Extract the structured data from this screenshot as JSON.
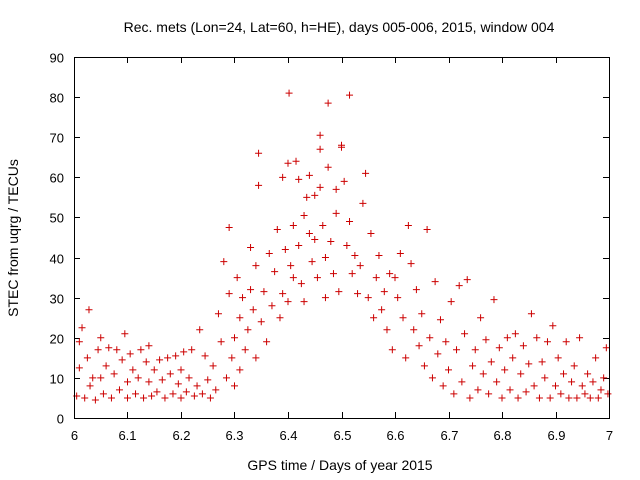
{
  "chart_data": {
    "type": "scatter",
    "title": "Rec. mets (Lon=24, Lat=60, h=HE), days 005-006, 2015, window 004",
    "xlabel": "GPS time / Days of year 2015",
    "ylabel": "STEC from uqrg / TECUs",
    "xlim": [
      6,
      7
    ],
    "ylim": [
      0,
      90
    ],
    "xticks": [
      6,
      6.1,
      6.2,
      6.3,
      6.4,
      6.5,
      6.6,
      6.7,
      6.8,
      6.9,
      7
    ],
    "xtick_labels": [
      "6",
      "6.1",
      "6.2",
      "6.3",
      "6.4",
      "6.5",
      "6.6",
      "6.7",
      "6.8",
      "6.9",
      "7"
    ],
    "yticks": [
      0,
      10,
      20,
      30,
      40,
      50,
      60,
      70,
      80,
      90
    ],
    "ytick_labels": [
      "0",
      "10",
      "20",
      "30",
      "40",
      "50",
      "60",
      "70",
      "80",
      "90"
    ],
    "marker": "+",
    "color": "#cc0000",
    "series": [
      {
        "name": "STEC",
        "points": [
          [
            6.005,
            5.5
          ],
          [
            6.01,
            19
          ],
          [
            6.01,
            12.5
          ],
          [
            6.015,
            22.5
          ],
          [
            6.02,
            5
          ],
          [
            6.025,
            15
          ],
          [
            6.028,
            27
          ],
          [
            6.03,
            8
          ],
          [
            6.035,
            10
          ],
          [
            6.04,
            4.5
          ],
          [
            6.045,
            17
          ],
          [
            6.05,
            20
          ],
          [
            6.05,
            10
          ],
          [
            6.055,
            6
          ],
          [
            6.06,
            13
          ],
          [
            6.065,
            17.5
          ],
          [
            6.07,
            5
          ],
          [
            6.075,
            11
          ],
          [
            6.08,
            17
          ],
          [
            6.085,
            7
          ],
          [
            6.09,
            14.5
          ],
          [
            6.095,
            21
          ],
          [
            6.1,
            5
          ],
          [
            6.1,
            9
          ],
          [
            6.105,
            16
          ],
          [
            6.11,
            12
          ],
          [
            6.115,
            6
          ],
          [
            6.12,
            10
          ],
          [
            6.125,
            17
          ],
          [
            6.13,
            5
          ],
          [
            6.135,
            14
          ],
          [
            6.14,
            9
          ],
          [
            6.14,
            18
          ],
          [
            6.145,
            5.5
          ],
          [
            6.15,
            12
          ],
          [
            6.155,
            6.5
          ],
          [
            6.16,
            14.5
          ],
          [
            6.165,
            9.5
          ],
          [
            6.17,
            5
          ],
          [
            6.175,
            15
          ],
          [
            6.18,
            11
          ],
          [
            6.185,
            6
          ],
          [
            6.19,
            15.5
          ],
          [
            6.195,
            8.5
          ],
          [
            6.2,
            5
          ],
          [
            6.2,
            12
          ],
          [
            6.205,
            16.5
          ],
          [
            6.21,
            6.5
          ],
          [
            6.215,
            10
          ],
          [
            6.22,
            17
          ],
          [
            6.225,
            5.5
          ],
          [
            6.23,
            8
          ],
          [
            6.235,
            22
          ],
          [
            6.24,
            6
          ],
          [
            6.245,
            15.5
          ],
          [
            6.25,
            9.5
          ],
          [
            6.255,
            5
          ],
          [
            6.26,
            13
          ],
          [
            6.265,
            7
          ],
          [
            6.27,
            26
          ],
          [
            6.275,
            19
          ],
          [
            6.28,
            39
          ],
          [
            6.285,
            10
          ],
          [
            6.29,
            47.5
          ],
          [
            6.29,
            31
          ],
          [
            6.295,
            15
          ],
          [
            6.3,
            8
          ],
          [
            6.3,
            20
          ],
          [
            6.305,
            35
          ],
          [
            6.31,
            12
          ],
          [
            6.31,
            25
          ],
          [
            6.315,
            30
          ],
          [
            6.32,
            17
          ],
          [
            6.325,
            22
          ],
          [
            6.33,
            32
          ],
          [
            6.33,
            42.5
          ],
          [
            6.335,
            27
          ],
          [
            6.34,
            15
          ],
          [
            6.34,
            38
          ],
          [
            6.345,
            58
          ],
          [
            6.345,
            66
          ],
          [
            6.35,
            24
          ],
          [
            6.355,
            31.5
          ],
          [
            6.36,
            19
          ],
          [
            6.365,
            41
          ],
          [
            6.37,
            28
          ],
          [
            6.375,
            36.5
          ],
          [
            6.38,
            47
          ],
          [
            6.385,
            25
          ],
          [
            6.39,
            60
          ],
          [
            6.39,
            31
          ],
          [
            6.395,
            42
          ],
          [
            6.4,
            29
          ],
          [
            6.4,
            63.5
          ],
          [
            6.402,
            81
          ],
          [
            6.405,
            38
          ],
          [
            6.41,
            48
          ],
          [
            6.41,
            35
          ],
          [
            6.415,
            64
          ],
          [
            6.42,
            59.5
          ],
          [
            6.42,
            43
          ],
          [
            6.425,
            33.5
          ],
          [
            6.43,
            50.5
          ],
          [
            6.43,
            29
          ],
          [
            6.435,
            55
          ],
          [
            6.44,
            60.5
          ],
          [
            6.44,
            46
          ],
          [
            6.445,
            39
          ],
          [
            6.45,
            55.5
          ],
          [
            6.45,
            44.5
          ],
          [
            6.455,
            35
          ],
          [
            6.46,
            67
          ],
          [
            6.46,
            70.5
          ],
          [
            6.46,
            57.5
          ],
          [
            6.465,
            48
          ],
          [
            6.47,
            40
          ],
          [
            6.47,
            30
          ],
          [
            6.475,
            78.5
          ],
          [
            6.475,
            62.5
          ],
          [
            6.48,
            44
          ],
          [
            6.485,
            36
          ],
          [
            6.49,
            57
          ],
          [
            6.49,
            51
          ],
          [
            6.495,
            31.5
          ],
          [
            6.5,
            68
          ],
          [
            6.5,
            67.5
          ],
          [
            6.505,
            59
          ],
          [
            6.51,
            43
          ],
          [
            6.515,
            80.5
          ],
          [
            6.515,
            49
          ],
          [
            6.52,
            36
          ],
          [
            6.525,
            40.5
          ],
          [
            6.53,
            31
          ],
          [
            6.535,
            38
          ],
          [
            6.54,
            53.5
          ],
          [
            6.545,
            61
          ],
          [
            6.55,
            30
          ],
          [
            6.555,
            46
          ],
          [
            6.56,
            25
          ],
          [
            6.565,
            35
          ],
          [
            6.57,
            40.5
          ],
          [
            6.575,
            27
          ],
          [
            6.58,
            31.5
          ],
          [
            6.585,
            22
          ],
          [
            6.59,
            36
          ],
          [
            6.595,
            17
          ],
          [
            6.6,
            35
          ],
          [
            6.605,
            30
          ],
          [
            6.61,
            41
          ],
          [
            6.615,
            25
          ],
          [
            6.62,
            15
          ],
          [
            6.625,
            48
          ],
          [
            6.63,
            38.5
          ],
          [
            6.635,
            22
          ],
          [
            6.64,
            32
          ],
          [
            6.645,
            18
          ],
          [
            6.65,
            26
          ],
          [
            6.655,
            13
          ],
          [
            6.66,
            47
          ],
          [
            6.665,
            20
          ],
          [
            6.67,
            10
          ],
          [
            6.675,
            34
          ],
          [
            6.68,
            16
          ],
          [
            6.685,
            24.5
          ],
          [
            6.69,
            8
          ],
          [
            6.695,
            19
          ],
          [
            6.7,
            12
          ],
          [
            6.705,
            29
          ],
          [
            6.71,
            6
          ],
          [
            6.715,
            17
          ],
          [
            6.72,
            33
          ],
          [
            6.725,
            9
          ],
          [
            6.73,
            21
          ],
          [
            6.735,
            34.5
          ],
          [
            6.74,
            5
          ],
          [
            6.745,
            13
          ],
          [
            6.75,
            17
          ],
          [
            6.755,
            7
          ],
          [
            6.76,
            25
          ],
          [
            6.765,
            11
          ],
          [
            6.77,
            19.5
          ],
          [
            6.775,
            6
          ],
          [
            6.78,
            14
          ],
          [
            6.785,
            29.5
          ],
          [
            6.79,
            9
          ],
          [
            6.795,
            17.5
          ],
          [
            6.8,
            5
          ],
          [
            6.805,
            12
          ],
          [
            6.81,
            20
          ],
          [
            6.815,
            7
          ],
          [
            6.82,
            15
          ],
          [
            6.825,
            21
          ],
          [
            6.83,
            5
          ],
          [
            6.835,
            11
          ],
          [
            6.84,
            18
          ],
          [
            6.845,
            6.5
          ],
          [
            6.85,
            13.5
          ],
          [
            6.855,
            26
          ],
          [
            6.86,
            8
          ],
          [
            6.865,
            20
          ],
          [
            6.87,
            5
          ],
          [
            6.875,
            14
          ],
          [
            6.88,
            10
          ],
          [
            6.885,
            19
          ],
          [
            6.89,
            5
          ],
          [
            6.895,
            23
          ],
          [
            6.9,
            8
          ],
          [
            6.905,
            15
          ],
          [
            6.91,
            6
          ],
          [
            6.915,
            11
          ],
          [
            6.92,
            19
          ],
          [
            6.925,
            5
          ],
          [
            6.93,
            9
          ],
          [
            6.935,
            13
          ],
          [
            6.94,
            5
          ],
          [
            6.945,
            20
          ],
          [
            6.95,
            8
          ],
          [
            6.955,
            6
          ],
          [
            6.96,
            11
          ],
          [
            6.965,
            5
          ],
          [
            6.97,
            9
          ],
          [
            6.975,
            15
          ],
          [
            6.98,
            5
          ],
          [
            6.985,
            7
          ],
          [
            6.99,
            10
          ],
          [
            6.995,
            17.5
          ],
          [
            6.998,
            6
          ]
        ]
      }
    ]
  }
}
